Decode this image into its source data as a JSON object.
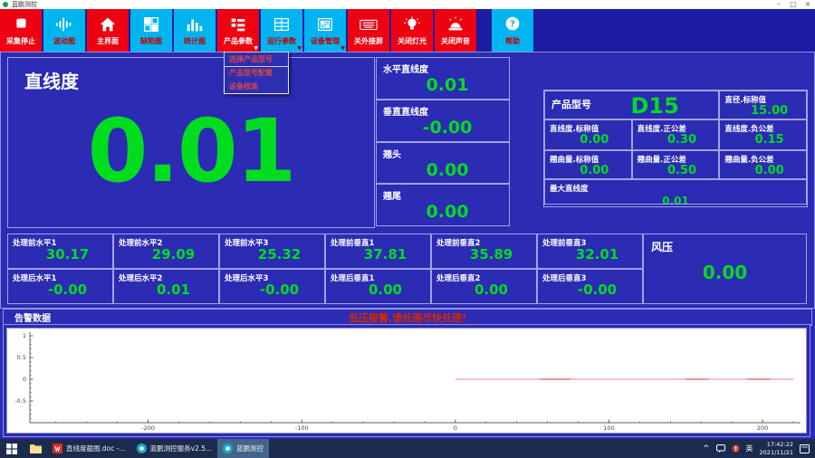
{
  "window": {
    "title": "蓝鹏测控"
  },
  "toolbar": {
    "buttons": [
      {
        "label": "采集停止",
        "style": "red",
        "icon": "stop-icon"
      },
      {
        "label": "波动图",
        "style": "cyan",
        "icon": "waveform-icon"
      },
      {
        "label": "主界面",
        "style": "red",
        "icon": "home-icon"
      },
      {
        "label": "缺陷图",
        "style": "cyan",
        "icon": "defect-grid-icon"
      },
      {
        "label": "统计图",
        "style": "cyan",
        "icon": "barchart-icon"
      },
      {
        "label": "产品参数",
        "style": "red",
        "icon": "product-list-icon",
        "has_menu": true
      },
      {
        "label": "运行参数",
        "style": "cyan",
        "icon": "run-params-icon",
        "has_menu": true
      },
      {
        "label": "设备管理",
        "style": "cyan",
        "icon": "device-icon",
        "has_menu": true
      },
      {
        "label": "关外接屏",
        "style": "red",
        "icon": "keyboard-icon"
      },
      {
        "label": "关闭灯光",
        "style": "red",
        "icon": "bulb-icon"
      },
      {
        "label": "关闭声音",
        "style": "red",
        "icon": "siren-icon"
      },
      {
        "label": "帮助",
        "style": "cyan",
        "icon": "help-icon"
      }
    ]
  },
  "menu": {
    "items": [
      {
        "label": "选择产品型号"
      },
      {
        "label": "产品型号配置"
      },
      {
        "label": "设备校准"
      }
    ]
  },
  "main": {
    "straightness": {
      "label": "直线度",
      "value": "0.01"
    },
    "metrics": [
      {
        "label": "水平直线度",
        "value": "0.01"
      },
      {
        "label": "垂直直线度",
        "value": "-0.00"
      },
      {
        "label": "翘头",
        "value": "0.00"
      },
      {
        "label": "翘尾",
        "value": "0.00"
      }
    ],
    "product": {
      "model": {
        "label": "产品型号",
        "value": "D15"
      },
      "diameter": {
        "label": "直径.标称值",
        "value": "15.00"
      },
      "row2": [
        {
          "label": "直线度.标称值",
          "value": "0.00"
        },
        {
          "label": "直线度.正公差",
          "value": "0.30"
        },
        {
          "label": "直线度.负公差",
          "value": "0.15"
        }
      ],
      "row3": [
        {
          "label": "翘曲量.标称值",
          "value": "0.00"
        },
        {
          "label": "翘曲量.正公差",
          "value": "0.50"
        },
        {
          "label": "翘曲量.负公差",
          "value": "0.00"
        }
      ],
      "max": {
        "label": "最大直线度",
        "value": "0.01"
      }
    },
    "readings": {
      "before": [
        {
          "label": "处理前水平1",
          "value": "30.17"
        },
        {
          "label": "处理前水平2",
          "value": "29.09"
        },
        {
          "label": "处理前水平3",
          "value": "25.32"
        },
        {
          "label": "处理前垂直1",
          "value": "37.81"
        },
        {
          "label": "处理前垂直2",
          "value": "35.89"
        },
        {
          "label": "处理前垂直3",
          "value": "32.01"
        }
      ],
      "after": [
        {
          "label": "处理后水平1",
          "value": "-0.00"
        },
        {
          "label": "处理后水平2",
          "value": "0.01"
        },
        {
          "label": "处理后水平3",
          "value": "-0.00"
        },
        {
          "label": "处理后垂直1",
          "value": "0.00"
        },
        {
          "label": "处理后垂直2",
          "value": "0.00"
        },
        {
          "label": "处理后垂直3",
          "value": "-0.00"
        }
      ],
      "pressure": {
        "label": "风压",
        "value": "0.00"
      }
    },
    "alert": {
      "title": "告警数据",
      "message": "低压报警,请处理尽快处理!"
    }
  },
  "chart_data": {
    "type": "line",
    "title": "",
    "xlabel": "",
    "ylabel": "",
    "xlim": [
      -277,
      220
    ],
    "ylim": [
      -1,
      1
    ],
    "xticks": [
      -200,
      -100,
      0,
      100,
      200
    ],
    "yticks": [
      1,
      0.5,
      0,
      -0.5
    ],
    "xtick_minor_step": 20,
    "ytick_minor_step": 0.1,
    "grid": false,
    "legend": false,
    "series": [
      {
        "name": "profile-line",
        "color": "#f49c9c",
        "x": [
          0,
          220
        ],
        "y": [
          0,
          0
        ]
      },
      {
        "name": "noise-segment-1",
        "color": "#de6a6a",
        "x": [
          55,
          75
        ],
        "y": [
          0,
          0
        ]
      },
      {
        "name": "noise-segment-2",
        "color": "#de6a6a",
        "x": [
          150,
          165
        ],
        "y": [
          0,
          0
        ]
      },
      {
        "name": "noise-segment-3",
        "color": "#de6a6a",
        "x": [
          190,
          205
        ],
        "y": [
          0,
          0
        ]
      }
    ]
  },
  "taskbar": {
    "apps": [
      {
        "label": "直线度截图.doc -...",
        "icon": "wps-doc-icon",
        "active": false
      },
      {
        "label": "蓝鹏测控服务v2.5...",
        "icon": "lanpeng-service-icon",
        "active": false
      },
      {
        "label": "蓝鹏测控",
        "icon": "lanpeng-app-icon",
        "active": true
      }
    ],
    "tray": {
      "ime": "英",
      "time": "17:42:22",
      "date": "2021/11/21"
    }
  },
  "colors": {
    "bg_blue": "#2b2bb4",
    "toolbar_blue": "#1b1ba3",
    "accent_red": "#ee0212",
    "accent_cyan": "#00b4f0",
    "value_green": "#00dd1e",
    "alert_red": "#d92500",
    "panel_border": "#a2a2e8",
    "taskbar_blue": "#1b2b4e"
  }
}
